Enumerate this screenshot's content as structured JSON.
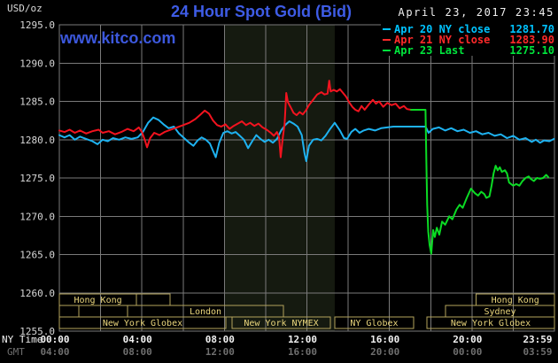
{
  "header": {
    "unit_label": "USD/oz",
    "title": "24 Hour Spot Gold (Bid)",
    "timestamp": "April 23, 2017 23:45",
    "watermark": "www.kitco.com"
  },
  "legend": [
    {
      "label": "Apr 20 NY close",
      "value": "1281.70",
      "color": "#00c3ff"
    },
    {
      "label": "Apr 21 NY close",
      "value": "1283.90",
      "color": "#ff2a2a"
    },
    {
      "label": "Apr 23 Last",
      "value": "1275.10",
      "color": "#00e53c"
    }
  ],
  "colors": {
    "background": "#000000",
    "grid": "#7a7a7a",
    "band": "#151a10",
    "axis_text": "#d9d9d9",
    "ny_time_text": "#f2f2f2",
    "gmt_text": "#6f6f6f"
  },
  "chart_data": {
    "type": "line",
    "title": "24 Hour Spot Gold (Bid)",
    "ylabel": "USD/oz",
    "ylim": [
      1255,
      1295
    ],
    "y_ticks": [
      1295.0,
      1290.0,
      1285.0,
      1280.0,
      1275.0,
      1270.0,
      1265.0,
      1260.0,
      1255.0
    ],
    "x_axis": {
      "row1_label": "NY Time",
      "row2_label": "GMT",
      "grid_step_hours": 2,
      "ticks": [
        {
          "hour": 0,
          "ny": "00:00",
          "gmt": "04:00"
        },
        {
          "hour": 4,
          "ny": "04:00",
          "gmt": "08:00"
        },
        {
          "hour": 8,
          "ny": "08:00",
          "gmt": "12:00"
        },
        {
          "hour": 12,
          "ny": "12:00",
          "gmt": "16:00"
        },
        {
          "hour": 16,
          "ny": "16:00",
          "gmt": "20:00"
        },
        {
          "hour": 20,
          "ny": "20:00",
          "gmt": "00:00"
        },
        {
          "hour": 23.983,
          "ny": "23:59",
          "gmt": "03:59"
        }
      ]
    },
    "highlight_band": {
      "start_hour": 8.03,
      "end_hour": 13.35
    },
    "sessions": {
      "border_color": "#b3a35c",
      "text_color": "#ead67c",
      "rows": [
        {
          "name": "asia-row",
          "boxes": [
            {
              "start": 0,
              "end": 3.74,
              "label": "Hong Kong"
            },
            {
              "start": 3.74,
              "end": 5.37,
              "label": ""
            },
            {
              "start": 20.2,
              "end": 24,
              "label": "Hong Kong"
            }
          ]
        },
        {
          "name": "europe-row",
          "boxes": [
            {
              "start": 0,
              "end": 0.94,
              "label": ""
            },
            {
              "start": 0.94,
              "end": 3.31,
              "label": ""
            },
            {
              "start": 3.31,
              "end": 10.86,
              "label": "London"
            },
            {
              "start": 18.72,
              "end": 24,
              "label": "Sydney"
            }
          ]
        },
        {
          "name": "america-row",
          "boxes": [
            {
              "start": 0,
              "end": 8.07,
              "label": "New York Globex"
            },
            {
              "start": 8.37,
              "end": 13.14,
              "label": "New York NYMEX"
            },
            {
              "start": 13.35,
              "end": 17.17,
              "label": "NY Globex"
            },
            {
              "start": 17.82,
              "end": 24,
              "label": "New York Globex"
            }
          ]
        }
      ]
    },
    "series": [
      {
        "name": "Apr 20 NY close 1281.70",
        "color": "#1eb2f0",
        "points": [
          [
            0,
            1280.6
          ],
          [
            0.25,
            1280.3
          ],
          [
            0.5,
            1280.6
          ],
          [
            0.75,
            1280.0
          ],
          [
            1,
            1280.4
          ],
          [
            1.3,
            1280.1
          ],
          [
            1.6,
            1279.8
          ],
          [
            1.85,
            1279.4
          ],
          [
            2.1,
            1280.0
          ],
          [
            2.35,
            1279.8
          ],
          [
            2.6,
            1280.2
          ],
          [
            2.9,
            1280.0
          ],
          [
            3.2,
            1280.3
          ],
          [
            3.5,
            1280.1
          ],
          [
            3.8,
            1280.3
          ],
          [
            4.05,
            1281.0
          ],
          [
            4.3,
            1282.2
          ],
          [
            4.55,
            1282.9
          ],
          [
            4.8,
            1282.6
          ],
          [
            5.05,
            1282.0
          ],
          [
            5.3,
            1281.5
          ],
          [
            5.55,
            1281.7
          ],
          [
            5.8,
            1280.8
          ],
          [
            6.05,
            1280.2
          ],
          [
            6.3,
            1279.6
          ],
          [
            6.5,
            1279.2
          ],
          [
            6.7,
            1279.9
          ],
          [
            6.9,
            1280.3
          ],
          [
            7.1,
            1280.0
          ],
          [
            7.3,
            1279.5
          ],
          [
            7.5,
            1278.2
          ],
          [
            7.58,
            1277.7
          ],
          [
            7.75,
            1279.6
          ],
          [
            7.95,
            1280.9
          ],
          [
            8.15,
            1281.1
          ],
          [
            8.35,
            1280.8
          ],
          [
            8.55,
            1281.0
          ],
          [
            8.75,
            1280.5
          ],
          [
            8.95,
            1280.0
          ],
          [
            9.15,
            1278.9
          ],
          [
            9.35,
            1279.8
          ],
          [
            9.55,
            1280.6
          ],
          [
            9.75,
            1280.1
          ],
          [
            9.95,
            1279.7
          ],
          [
            10.15,
            1280.0
          ],
          [
            10.35,
            1279.6
          ],
          [
            10.55,
            1280.1
          ],
          [
            10.75,
            1281.2
          ],
          [
            10.95,
            1281.9
          ],
          [
            11.15,
            1282.4
          ],
          [
            11.35,
            1282.1
          ],
          [
            11.55,
            1281.7
          ],
          [
            11.75,
            1280.6
          ],
          [
            11.88,
            1278.3
          ],
          [
            11.97,
            1277.2
          ],
          [
            12.1,
            1279.2
          ],
          [
            12.3,
            1280.0
          ],
          [
            12.5,
            1280.1
          ],
          [
            12.7,
            1279.9
          ],
          [
            12.9,
            1280.5
          ],
          [
            13.1,
            1281.3
          ],
          [
            13.35,
            1282.2
          ],
          [
            13.6,
            1281.2
          ],
          [
            13.8,
            1280.2
          ],
          [
            13.95,
            1280.1
          ],
          [
            14.15,
            1281.0
          ],
          [
            14.35,
            1281.4
          ],
          [
            14.55,
            1280.9
          ],
          [
            14.75,
            1281.2
          ],
          [
            15,
            1281.4
          ],
          [
            15.3,
            1281.2
          ],
          [
            15.6,
            1281.5
          ],
          [
            15.9,
            1281.6
          ],
          [
            16.2,
            1281.7
          ],
          [
            17.75,
            1281.7
          ],
          [
            17.9,
            1280.9
          ],
          [
            18.1,
            1281.4
          ],
          [
            18.4,
            1281.6
          ],
          [
            18.7,
            1281.2
          ],
          [
            19,
            1281.5
          ],
          [
            19.3,
            1281.1
          ],
          [
            19.6,
            1281.3
          ],
          [
            19.9,
            1280.9
          ],
          [
            20.2,
            1281.1
          ],
          [
            20.5,
            1280.7
          ],
          [
            20.8,
            1280.9
          ],
          [
            21.1,
            1280.5
          ],
          [
            21.4,
            1280.7
          ],
          [
            21.7,
            1280.2
          ],
          [
            22,
            1280.5
          ],
          [
            22.3,
            1280.0
          ],
          [
            22.6,
            1280.2
          ],
          [
            22.9,
            1279.7
          ],
          [
            23.1,
            1280.0
          ],
          [
            23.3,
            1279.6
          ],
          [
            23.5,
            1279.9
          ],
          [
            23.75,
            1279.8
          ],
          [
            23.98,
            1280.1
          ]
        ]
      },
      {
        "name": "Apr 21 NY close 1283.90",
        "color": "#f2131f",
        "points": [
          [
            0,
            1281.2
          ],
          [
            0.25,
            1281.0
          ],
          [
            0.5,
            1281.3
          ],
          [
            0.75,
            1280.9
          ],
          [
            1,
            1281.2
          ],
          [
            1.3,
            1280.8
          ],
          [
            1.6,
            1281.1
          ],
          [
            1.9,
            1281.3
          ],
          [
            2.1,
            1280.9
          ],
          [
            2.4,
            1281.1
          ],
          [
            2.7,
            1280.7
          ],
          [
            3,
            1281.0
          ],
          [
            3.3,
            1281.4
          ],
          [
            3.6,
            1281.1
          ],
          [
            3.85,
            1281.6
          ],
          [
            4,
            1281.0
          ],
          [
            4.15,
            1279.9
          ],
          [
            4.25,
            1279.0
          ],
          [
            4.4,
            1280.2
          ],
          [
            4.6,
            1280.9
          ],
          [
            4.85,
            1280.6
          ],
          [
            5.1,
            1281.0
          ],
          [
            5.4,
            1281.3
          ],
          [
            5.7,
            1281.6
          ],
          [
            6,
            1281.9
          ],
          [
            6.3,
            1282.2
          ],
          [
            6.6,
            1282.7
          ],
          [
            6.85,
            1283.3
          ],
          [
            7.05,
            1283.8
          ],
          [
            7.25,
            1283.4
          ],
          [
            7.45,
            1282.5
          ],
          [
            7.65,
            1281.9
          ],
          [
            7.85,
            1281.7
          ],
          [
            8.05,
            1282.0
          ],
          [
            8.25,
            1281.4
          ],
          [
            8.45,
            1281.8
          ],
          [
            8.65,
            1282.1
          ],
          [
            8.85,
            1282.4
          ],
          [
            9.05,
            1281.9
          ],
          [
            9.25,
            1282.2
          ],
          [
            9.45,
            1281.8
          ],
          [
            9.65,
            1282.1
          ],
          [
            9.85,
            1281.6
          ],
          [
            10.05,
            1281.3
          ],
          [
            10.25,
            1280.9
          ],
          [
            10.4,
            1280.5
          ],
          [
            10.55,
            1281.0
          ],
          [
            10.65,
            1280.3
          ],
          [
            10.73,
            1277.7
          ],
          [
            10.82,
            1280.0
          ],
          [
            10.92,
            1282.0
          ],
          [
            11,
            1286.1
          ],
          [
            11.08,
            1284.9
          ],
          [
            11.2,
            1284.3
          ],
          [
            11.35,
            1283.5
          ],
          [
            11.5,
            1283.2
          ],
          [
            11.65,
            1283.6
          ],
          [
            11.8,
            1283.3
          ],
          [
            11.95,
            1283.8
          ],
          [
            12.1,
            1284.5
          ],
          [
            12.3,
            1285.2
          ],
          [
            12.5,
            1285.9
          ],
          [
            12.7,
            1286.2
          ],
          [
            12.85,
            1285.9
          ],
          [
            13,
            1286.0
          ],
          [
            13.08,
            1287.7
          ],
          [
            13.15,
            1286.3
          ],
          [
            13.3,
            1286.5
          ],
          [
            13.45,
            1286.3
          ],
          [
            13.6,
            1286.6
          ],
          [
            13.75,
            1286.1
          ],
          [
            13.9,
            1285.6
          ],
          [
            14.05,
            1284.9
          ],
          [
            14.2,
            1284.3
          ],
          [
            14.35,
            1283.9
          ],
          [
            14.5,
            1283.7
          ],
          [
            14.65,
            1284.4
          ],
          [
            14.8,
            1283.9
          ],
          [
            15,
            1284.6
          ],
          [
            15.2,
            1285.2
          ],
          [
            15.35,
            1284.7
          ],
          [
            15.5,
            1285.0
          ],
          [
            15.7,
            1284.3
          ],
          [
            15.9,
            1284.8
          ],
          [
            16.1,
            1284.5
          ],
          [
            16.3,
            1284.7
          ],
          [
            16.5,
            1284.1
          ],
          [
            16.7,
            1284.4
          ],
          [
            16.85,
            1284.0
          ],
          [
            17.05,
            1283.9
          ]
        ]
      },
      {
        "name": "Apr 23 Last 1275.10",
        "color": "#0bdb24",
        "points": [
          [
            17.05,
            1283.9
          ],
          [
            17.75,
            1283.9
          ],
          [
            17.79,
            1277.0
          ],
          [
            17.83,
            1271.5
          ],
          [
            17.88,
            1268.0
          ],
          [
            17.95,
            1266.2
          ],
          [
            18.03,
            1265.1
          ],
          [
            18.12,
            1268.2
          ],
          [
            18.2,
            1267.3
          ],
          [
            18.3,
            1268.5
          ],
          [
            18.42,
            1267.6
          ],
          [
            18.55,
            1269.3
          ],
          [
            18.7,
            1268.9
          ],
          [
            18.9,
            1270.0
          ],
          [
            19.05,
            1269.6
          ],
          [
            19.25,
            1270.9
          ],
          [
            19.4,
            1271.5
          ],
          [
            19.55,
            1271.1
          ],
          [
            19.75,
            1272.4
          ],
          [
            19.95,
            1273.6
          ],
          [
            20.15,
            1273.0
          ],
          [
            20.3,
            1272.7
          ],
          [
            20.45,
            1273.2
          ],
          [
            20.6,
            1272.9
          ],
          [
            20.7,
            1272.4
          ],
          [
            20.85,
            1272.6
          ],
          [
            20.95,
            1274.0
          ],
          [
            21.05,
            1275.6
          ],
          [
            21.15,
            1276.6
          ],
          [
            21.25,
            1276.0
          ],
          [
            21.35,
            1276.4
          ],
          [
            21.45,
            1275.8
          ],
          [
            21.6,
            1276.0
          ],
          [
            21.7,
            1275.6
          ],
          [
            21.8,
            1274.4
          ],
          [
            22,
            1274.0
          ],
          [
            22.15,
            1274.2
          ],
          [
            22.3,
            1274.0
          ],
          [
            22.45,
            1274.6
          ],
          [
            22.6,
            1275.0
          ],
          [
            22.75,
            1275.2
          ],
          [
            22.85,
            1274.9
          ],
          [
            23,
            1274.6
          ],
          [
            23.15,
            1275.0
          ],
          [
            23.3,
            1274.9
          ],
          [
            23.45,
            1275.0
          ],
          [
            23.6,
            1275.4
          ],
          [
            23.7,
            1275.1
          ]
        ]
      }
    ]
  }
}
